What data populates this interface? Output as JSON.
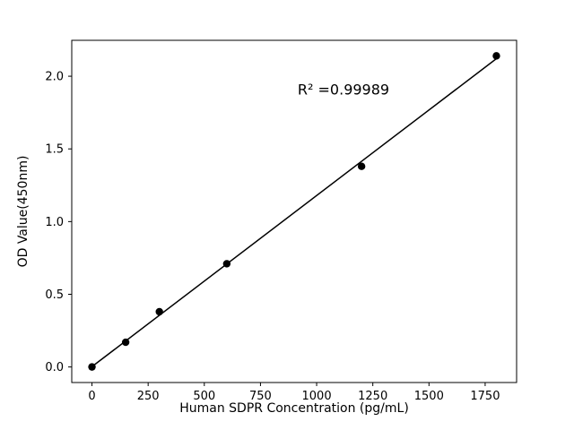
{
  "chart_data": {
    "type": "scatter",
    "title": "",
    "xlabel": "Human SDPR Concentration (pg/mL)",
    "ylabel": "OD Value(450nm)",
    "annotation": "R² =0.99989",
    "x": [
      0,
      150,
      300,
      600,
      1200,
      1800
    ],
    "y": [
      0.0,
      0.17,
      0.38,
      0.71,
      1.38,
      2.14
    ],
    "fit_line": {
      "slope": 0.001177,
      "intercept": 0.0022,
      "x_start": 0,
      "x_end": 1800
    },
    "xlim": [
      -90,
      1890
    ],
    "ylim": [
      -0.107,
      2.247
    ],
    "xticks": [
      0,
      250,
      500,
      750,
      1000,
      1250,
      1500,
      1750
    ],
    "xtick_labels": [
      "0",
      "250",
      "500",
      "750",
      "1000",
      "1250",
      "1500",
      "1750"
    ],
    "yticks": [
      0.0,
      0.5,
      1.0,
      1.5,
      2.0
    ],
    "ytick_labels": [
      "0.0",
      "0.5",
      "1.0",
      "1.5",
      "2.0"
    ],
    "marker_color": "#000000",
    "line_color": "#000000",
    "axis_color": "#000000",
    "grid": false,
    "legend": null
  }
}
